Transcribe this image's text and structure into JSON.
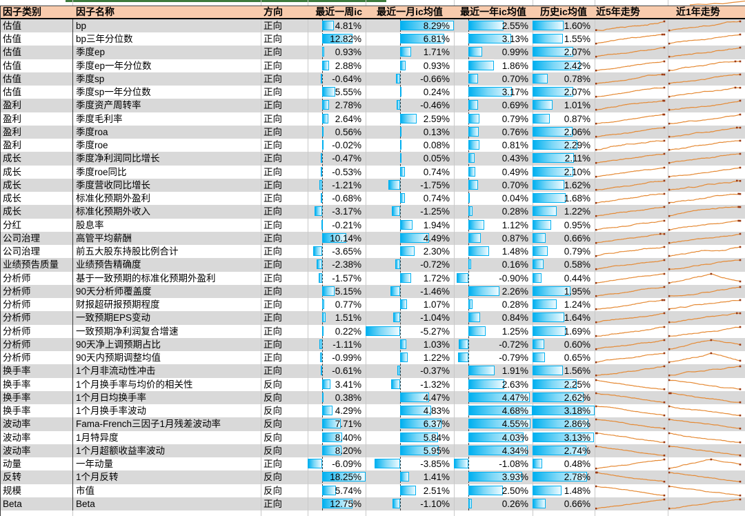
{
  "header": {
    "columns": [
      "因子类别",
      "因子名称",
      "方向",
      "最近一周ic",
      "最近一月ic均值",
      "最近一年ic均值",
      "历史ic均值",
      "近5年走势",
      "近1年走势"
    ]
  },
  "colors": {
    "header_bg": "#F8CBAD",
    "row_alt": "#D9D9D9",
    "bar_fill": "#00B0F0",
    "spark_line": "#E58A35",
    "spark_marker": "#993711",
    "top_strip_green": "#3C7A3C"
  },
  "rows": [
    {
      "cat": "估值",
      "name": "bp",
      "dir": "正向",
      "week": "4.81%",
      "month": "8.29%",
      "year": "2.55%",
      "hist": "1.60%"
    },
    {
      "cat": "估值",
      "name": "bp三年分位数",
      "dir": "正向",
      "week": "12.82%",
      "month": "6.81%",
      "year": "3.13%",
      "hist": "1.55%"
    },
    {
      "cat": "估值",
      "name": "季度ep",
      "dir": "正向",
      "week": "0.93%",
      "month": "1.71%",
      "year": "0.99%",
      "hist": "2.07%"
    },
    {
      "cat": "估值",
      "name": "季度ep一年分位数",
      "dir": "正向",
      "week": "2.88%",
      "month": "0.93%",
      "year": "1.86%",
      "hist": "2.42%"
    },
    {
      "cat": "估值",
      "name": "季度sp",
      "dir": "正向",
      "week": "-0.64%",
      "month": "-0.66%",
      "year": "0.70%",
      "hist": "0.78%"
    },
    {
      "cat": "估值",
      "name": "季度sp一年分位数",
      "dir": "正向",
      "week": "5.55%",
      "month": "0.24%",
      "year": "3.17%",
      "hist": "2.07%"
    },
    {
      "cat": "盈利",
      "name": "季度资产周转率",
      "dir": "正向",
      "week": "2.78%",
      "month": "-0.46%",
      "year": "0.69%",
      "hist": "1.01%"
    },
    {
      "cat": "盈利",
      "name": "季度毛利率",
      "dir": "正向",
      "week": "2.64%",
      "month": "2.59%",
      "year": "0.79%",
      "hist": "0.87%"
    },
    {
      "cat": "盈利",
      "name": "季度roa",
      "dir": "正向",
      "week": "0.56%",
      "month": "0.13%",
      "year": "0.76%",
      "hist": "2.06%"
    },
    {
      "cat": "盈利",
      "name": "季度roe",
      "dir": "正向",
      "week": "-0.02%",
      "month": "0.08%",
      "year": "0.81%",
      "hist": "2.29%"
    },
    {
      "cat": "成长",
      "name": "季度净利润同比增长",
      "dir": "正向",
      "week": "-0.47%",
      "month": "0.05%",
      "year": "0.43%",
      "hist": "2.11%"
    },
    {
      "cat": "成长",
      "name": "季度roe同比",
      "dir": "正向",
      "week": "-0.53%",
      "month": "0.74%",
      "year": "0.49%",
      "hist": "2.10%"
    },
    {
      "cat": "成长",
      "name": "季度营收同比增长",
      "dir": "正向",
      "week": "-1.21%",
      "month": "-1.75%",
      "year": "0.70%",
      "hist": "1.62%"
    },
    {
      "cat": "成长",
      "name": "标准化预期外盈利",
      "dir": "正向",
      "week": "-0.68%",
      "month": "0.74%",
      "year": "0.04%",
      "hist": "1.68%"
    },
    {
      "cat": "成长",
      "name": "标准化预期外收入",
      "dir": "正向",
      "week": "-3.17%",
      "month": "-1.25%",
      "year": "0.28%",
      "hist": "1.22%"
    },
    {
      "cat": "分红",
      "name": "股息率",
      "dir": "正向",
      "week": "-0.21%",
      "month": "1.94%",
      "year": "1.12%",
      "hist": "0.95%"
    },
    {
      "cat": "公司治理",
      "name": "高管平均薪酬",
      "dir": "正向",
      "week": "10.14%",
      "month": "4.49%",
      "year": "0.87%",
      "hist": "0.66%"
    },
    {
      "cat": "公司治理",
      "name": "前五大股东持股比例合计",
      "dir": "正向",
      "week": "-3.65%",
      "month": "2.30%",
      "year": "1.48%",
      "hist": "0.79%"
    },
    {
      "cat": "业绩预告质量",
      "name": "业绩预告精确度",
      "dir": "正向",
      "week": "-2.38%",
      "month": "-0.72%",
      "year": "0.16%",
      "hist": "0.58%"
    },
    {
      "cat": "分析师",
      "name": "基于一致预期的标准化预期外盈利",
      "dir": "正向",
      "week": "-1.57%",
      "month": "1.72%",
      "year": "-0.90%",
      "hist": "0.44%"
    },
    {
      "cat": "分析师",
      "name": "90天分析师覆盖度",
      "dir": "正向",
      "week": "5.15%",
      "month": "-1.46%",
      "year": "2.26%",
      "hist": "1.95%"
    },
    {
      "cat": "分析师",
      "name": "财报超研报预期程度",
      "dir": "正向",
      "week": "0.77%",
      "month": "1.07%",
      "year": "0.28%",
      "hist": "1.24%"
    },
    {
      "cat": "分析师",
      "name": "一致预期EPS变动",
      "dir": "正向",
      "week": "1.51%",
      "month": "-1.04%",
      "year": "0.84%",
      "hist": "1.64%"
    },
    {
      "cat": "分析师",
      "name": "一致预期净利润复合增速",
      "dir": "正向",
      "week": "0.22%",
      "month": "-5.27%",
      "year": "1.25%",
      "hist": "1.69%"
    },
    {
      "cat": "分析师",
      "name": "90天净上调预期占比",
      "dir": "正向",
      "week": "-1.11%",
      "month": "1.03%",
      "year": "-0.72%",
      "hist": "0.60%"
    },
    {
      "cat": "分析师",
      "name": "90天内预期调整均值",
      "dir": "正向",
      "week": "-0.99%",
      "month": "1.22%",
      "year": "-0.79%",
      "hist": "0.65%"
    },
    {
      "cat": "换手率",
      "name": "1个月非流动性冲击",
      "dir": "正向",
      "week": "-0.61%",
      "month": "-0.37%",
      "year": "1.91%",
      "hist": "1.56%"
    },
    {
      "cat": "换手率",
      "name": "1个月换手率与均价的相关性",
      "dir": "反向",
      "week": "3.41%",
      "month": "-1.32%",
      "year": "2.63%",
      "hist": "2.25%"
    },
    {
      "cat": "换手率",
      "name": "1个月日均换手率",
      "dir": "反向",
      "week": "0.38%",
      "month": "4.47%",
      "year": "4.47%",
      "hist": "2.62%"
    },
    {
      "cat": "换手率",
      "name": "1个月换手率波动",
      "dir": "反向",
      "week": "4.29%",
      "month": "4.83%",
      "year": "4.68%",
      "hist": "3.18%"
    },
    {
      "cat": "波动率",
      "name": "Fama-French三因子1月残差波动率",
      "dir": "反向",
      "week": "7.71%",
      "month": "6.37%",
      "year": "4.55%",
      "hist": "2.86%"
    },
    {
      "cat": "波动率",
      "name": "1月特异度",
      "dir": "反向",
      "week": "8.40%",
      "month": "5.84%",
      "year": "4.03%",
      "hist": "3.13%"
    },
    {
      "cat": "波动率",
      "name": "1个月超额收益率波动",
      "dir": "反向",
      "week": "8.20%",
      "month": "5.95%",
      "year": "4.34%",
      "hist": "2.74%"
    },
    {
      "cat": "动量",
      "name": "一年动量",
      "dir": "正向",
      "week": "-6.09%",
      "month": "-3.85%",
      "year": "-1.08%",
      "hist": "0.48%"
    },
    {
      "cat": "反转",
      "name": "1个月反转",
      "dir": "反向",
      "week": "18.25%",
      "month": "1.41%",
      "year": "3.93%",
      "hist": "2.78%"
    },
    {
      "cat": "规模",
      "name": "市值",
      "dir": "反向",
      "week": "5.74%",
      "month": "2.51%",
      "year": "2.50%",
      "hist": "1.48%"
    },
    {
      "cat": "Beta",
      "name": "Beta",
      "dir": "正向",
      "week": "12.75%",
      "month": "-1.10%",
      "year": "0.26%",
      "hist": "0.66%"
    }
  ]
}
